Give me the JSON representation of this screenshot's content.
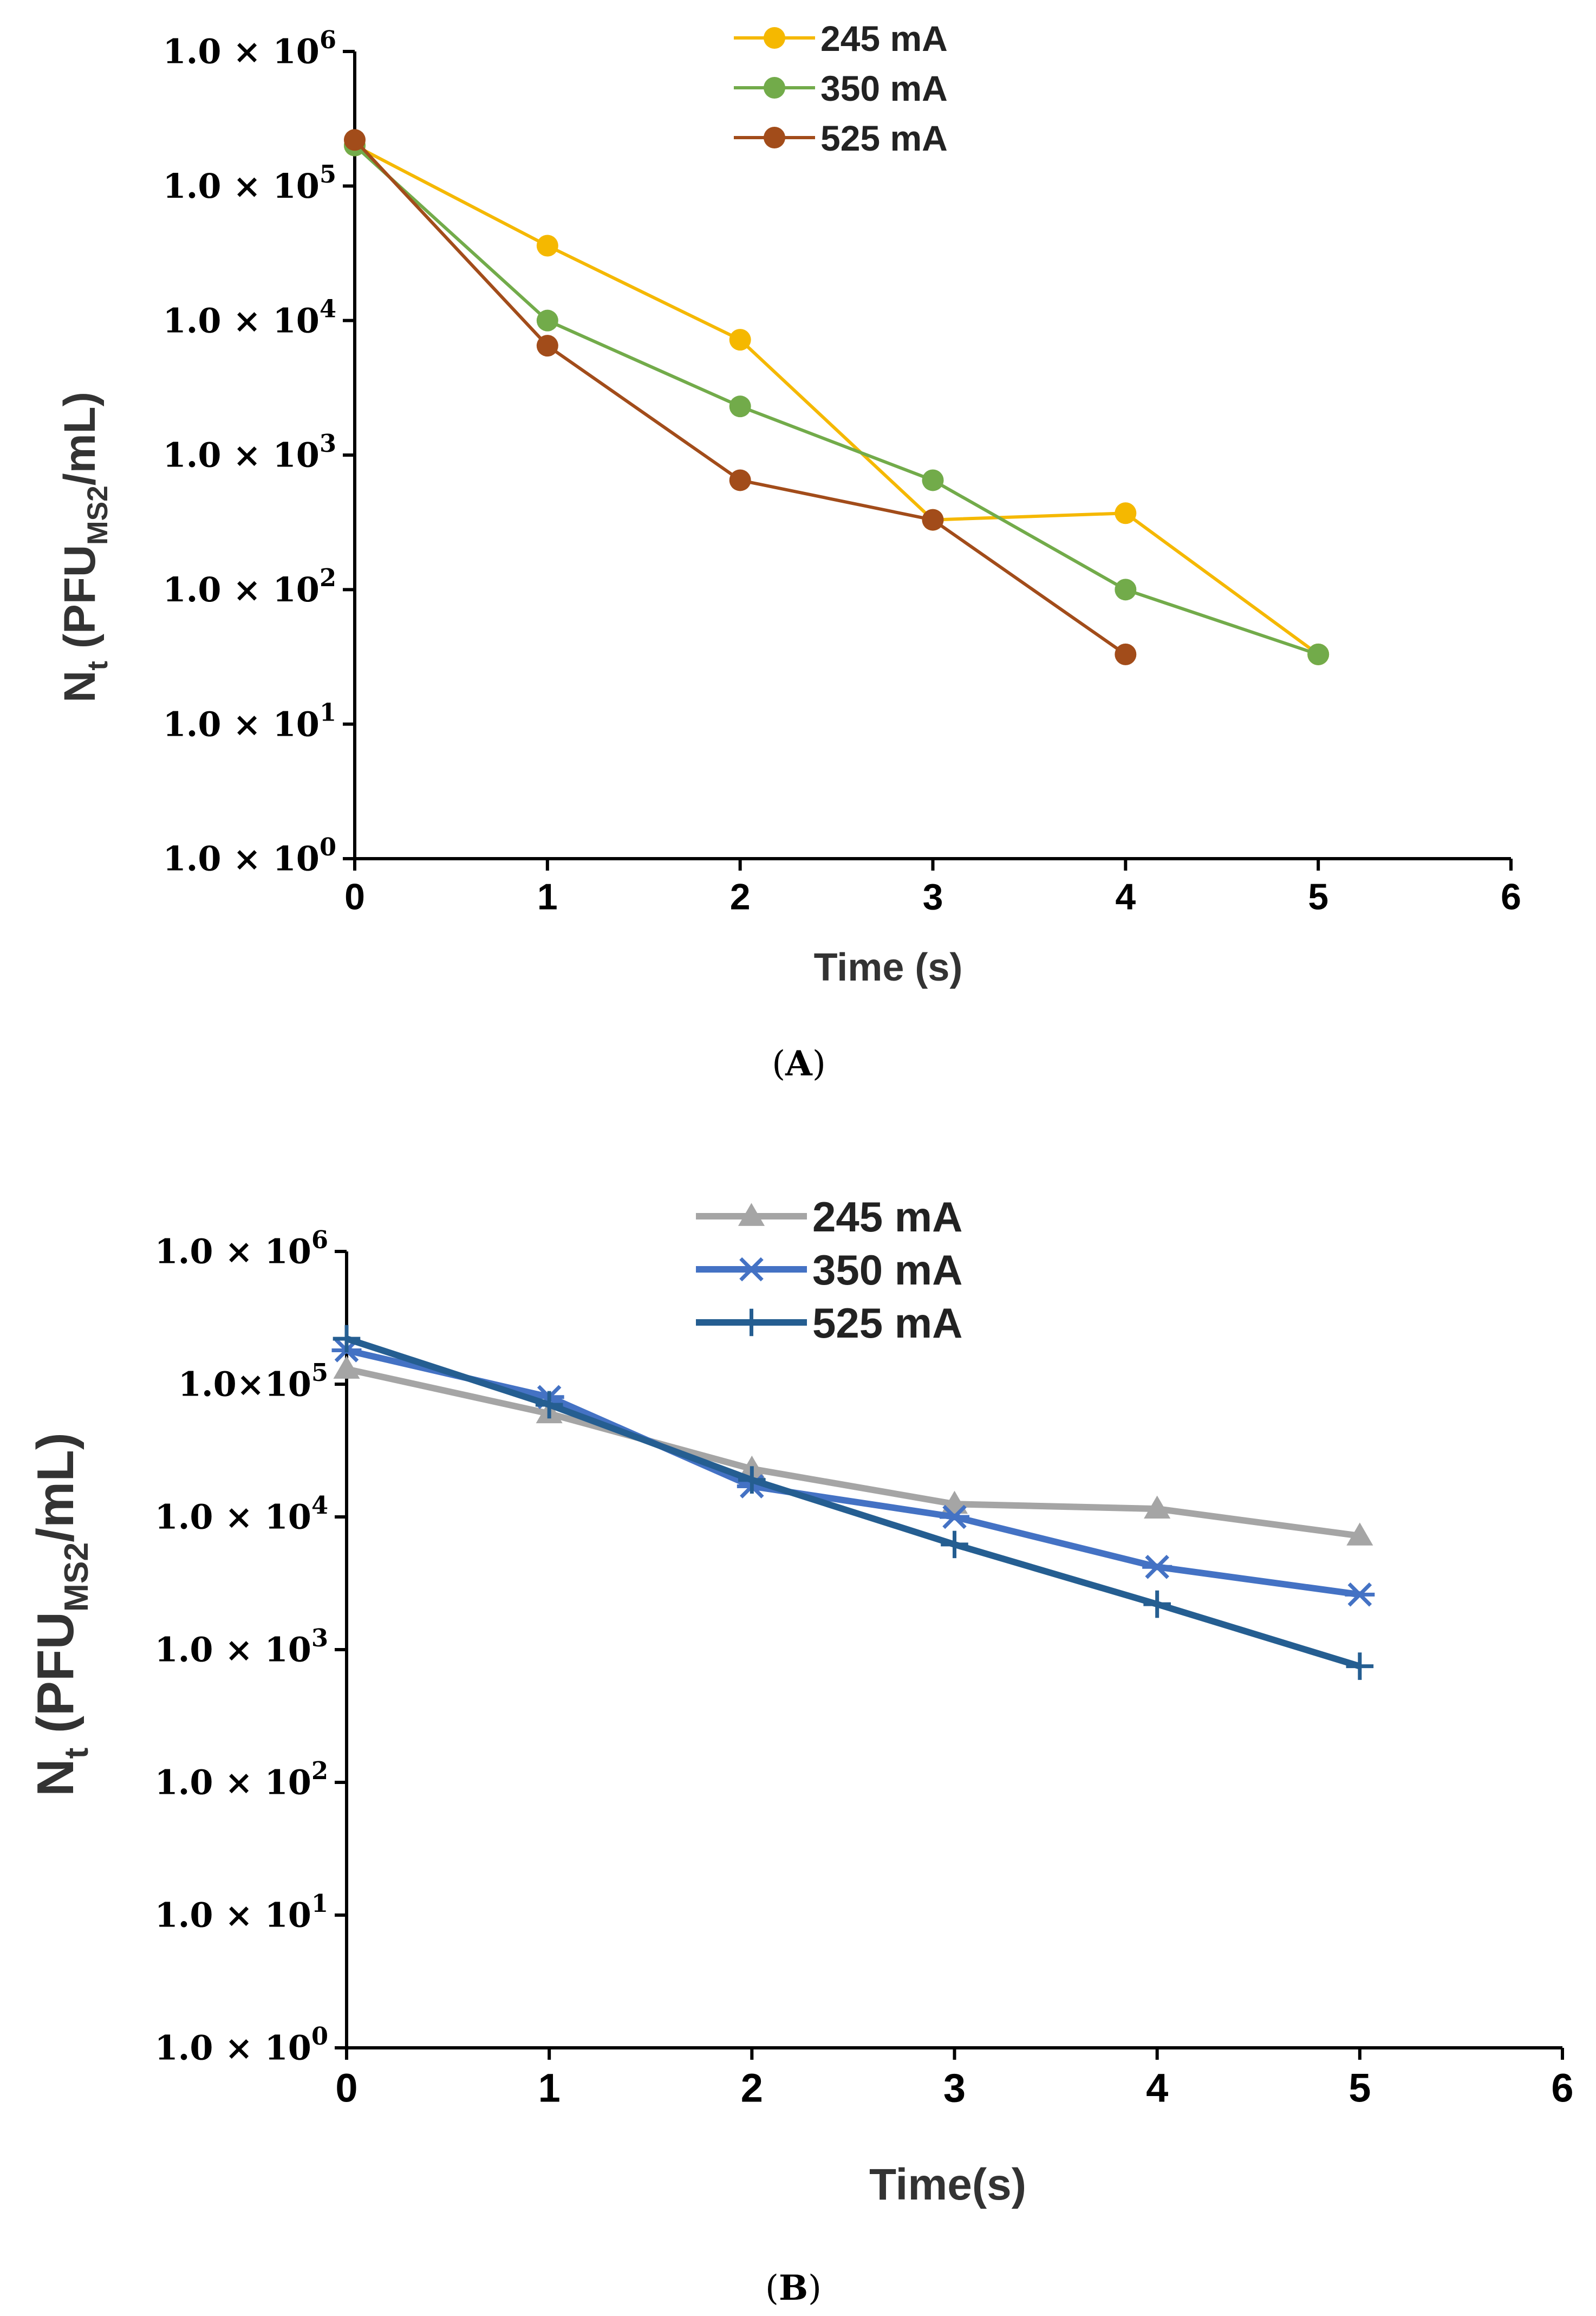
{
  "chart_data": [
    {
      "type": "line",
      "panel_label": "A",
      "xlabel": "Time (s)",
      "ylabel": "Nt (PFUMS2/mL)",
      "ylabel_parts": {
        "main": "N",
        "sub1": "t",
        "open": " (PFU",
        "sub2": "MS2",
        "close": "/mL)"
      },
      "y_scale": "log",
      "xlim": [
        0,
        6
      ],
      "ylim": [
        1,
        1000000
      ],
      "x_ticks": [
        0,
        1,
        2,
        3,
        4,
        5,
        6
      ],
      "y_ticks": [
        {
          "label": "1.0 × 10",
          "exp": "0"
        },
        {
          "label": "1.0 × 10",
          "exp": "1"
        },
        {
          "label": "1.0 × 10",
          "exp": "2"
        },
        {
          "label": "1.0 × 10",
          "exp": "3"
        },
        {
          "label": "1.0 × 10",
          "exp": "4"
        },
        {
          "label": "1.0 × 10",
          "exp": "5"
        },
        {
          "label": "1.0 × 10",
          "exp": "6"
        }
      ],
      "legend_position": "top-center",
      "series": [
        {
          "name": "245 mA",
          "color": "#f5b800",
          "marker": "circle",
          "x": [
            0,
            1,
            2,
            3,
            4,
            5
          ],
          "values": [
            200000,
            36000,
            7200,
            330,
            370,
            33
          ]
        },
        {
          "name": "350 mA",
          "color": "#72ab4a",
          "marker": "circle",
          "x": [
            0,
            1,
            2,
            3,
            4,
            5
          ],
          "values": [
            200000,
            10000,
            2300,
            650,
            100,
            33
          ]
        },
        {
          "name": "525 mA",
          "color": "#a24c1a",
          "marker": "circle",
          "x": [
            0,
            1,
            2,
            3,
            4
          ],
          "values": [
            220000,
            6500,
            650,
            330,
            33
          ]
        }
      ]
    },
    {
      "type": "line",
      "panel_label": "B",
      "xlabel": "Time(s)",
      "ylabel": "Nt (PFUMS2/mL)",
      "ylabel_parts": {
        "main": "N",
        "sub1": "t",
        "open": " (PFU",
        "sub2": "MS2",
        "close": "/mL)"
      },
      "y_scale": "log",
      "xlim": [
        0,
        6
      ],
      "ylim": [
        1,
        1000000
      ],
      "x_ticks": [
        0,
        1,
        2,
        3,
        4,
        5,
        6
      ],
      "y_ticks": [
        {
          "label": "1.0 × 10",
          "exp": "0"
        },
        {
          "label": "1.0 × 10",
          "exp": "1"
        },
        {
          "label": "1.0 × 10",
          "exp": "2"
        },
        {
          "label": "1.0 × 10",
          "exp": "3"
        },
        {
          "label": "1.0 × 10",
          "exp": "4"
        },
        {
          "label": "1.0×10",
          "exp": "5"
        },
        {
          "label": "1.0 × 10",
          "exp": "6"
        }
      ],
      "legend_position": "top-center",
      "series": [
        {
          "name": "245 mA",
          "color": "#a5a5a5",
          "marker": "triangle",
          "x": [
            0,
            1,
            2,
            3,
            4,
            5
          ],
          "values": [
            130000,
            60000,
            23000,
            12500,
            11500,
            7200
          ]
        },
        {
          "name": "350 mA",
          "color": "#4472c4",
          "marker": "asterisk",
          "x": [
            0,
            1,
            2,
            3,
            4,
            5
          ],
          "values": [
            180000,
            80000,
            17000,
            10000,
            4200,
            2600
          ]
        },
        {
          "name": "525 mA",
          "color": "#255e91",
          "marker": "plus",
          "x": [
            0,
            1,
            2,
            3,
            4,
            5
          ],
          "values": [
            220000,
            70000,
            19000,
            6200,
            2200,
            750
          ]
        }
      ]
    }
  ]
}
